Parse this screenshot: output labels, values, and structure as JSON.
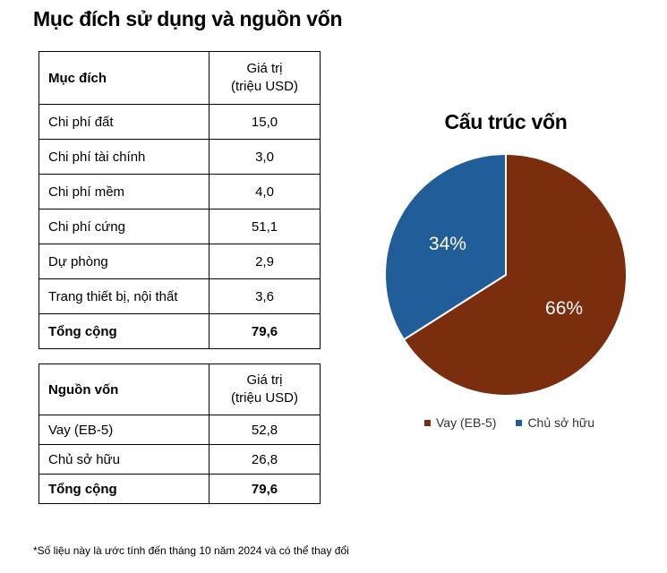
{
  "title": "Mục đích sử dụng và nguồn vốn",
  "uses_table": {
    "header": [
      "Mục đích",
      "Giá trị",
      "(triệu USD)"
    ],
    "rows": [
      [
        "Chi phí đất",
        "15,0"
      ],
      [
        "Chi phí tài chính",
        "3,0"
      ],
      [
        "Chi phí mềm",
        "4,0"
      ],
      [
        "Chi phí cứng",
        "51,1"
      ],
      [
        "Dự phòng",
        "2,9"
      ],
      [
        "Trang thiết bị, nội thất",
        "3,6"
      ]
    ],
    "total": [
      "Tổng cộng",
      "79,6"
    ]
  },
  "sources_table": {
    "header": [
      "Nguồn vốn",
      "Giá trị",
      "(triệu USD)"
    ],
    "rows": [
      [
        "Vay (EB-5)",
        "52,8"
      ],
      [
        "Chủ sở hữu",
        "26,8"
      ]
    ],
    "total": [
      "Tổng cộng",
      "79,6"
    ]
  },
  "chart_data": {
    "type": "pie",
    "title": "Cấu trúc vốn",
    "slices": [
      {
        "label": "Vay (EB-5)",
        "value": 66,
        "display": "66%",
        "color": "#7B2E0E"
      },
      {
        "label": "Chủ sở hữu",
        "value": 34,
        "display": "34%",
        "color": "#215E99"
      }
    ],
    "legend_position": "bottom"
  },
  "footnote": "*Số liệu này là ước tính đến tháng 10 năm 2024 và có thể thay đổi"
}
